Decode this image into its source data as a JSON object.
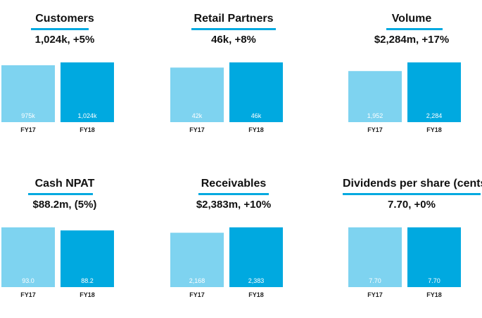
{
  "colors": {
    "fy17": "#7ed3f0",
    "fy18": "#00a9e0",
    "underline": "#00a9e0"
  },
  "chart_data": [
    {
      "type": "bar",
      "title": "Customers",
      "headline": "1,024k, +5%",
      "categories": [
        "FY17",
        "FY18"
      ],
      "values": [
        975,
        1024
      ],
      "labels": [
        "975k",
        "1,024k"
      ]
    },
    {
      "type": "bar",
      "title": "Retail Partners",
      "headline": "46k, +8%",
      "categories": [
        "FY17",
        "FY18"
      ],
      "values": [
        42,
        46
      ],
      "labels": [
        "42k",
        "46k"
      ]
    },
    {
      "type": "bar",
      "title": "Volume",
      "headline": "$2,284m, +17%",
      "categories": [
        "FY17",
        "FY18"
      ],
      "values": [
        1952,
        2284
      ],
      "labels": [
        "1,952",
        "2,284"
      ]
    },
    {
      "type": "bar",
      "title": "Cash NPAT",
      "headline": "$88.2m, (5%)",
      "categories": [
        "FY17",
        "FY18"
      ],
      "values": [
        93.0,
        88.2
      ],
      "labels": [
        "93.0",
        "88.2"
      ]
    },
    {
      "type": "bar",
      "title": "Receivables",
      "headline": "$2,383m, +10%",
      "categories": [
        "FY17",
        "FY18"
      ],
      "values": [
        2168,
        2383
      ],
      "labels": [
        "2,168",
        "2,383"
      ]
    },
    {
      "type": "bar",
      "title": "Dividends per share (cents",
      "headline": "7.70, +0%",
      "categories": [
        "FY17",
        "FY18"
      ],
      "values": [
        7.7,
        7.7
      ],
      "labels": [
        "7.70",
        "7.70"
      ]
    }
  ]
}
